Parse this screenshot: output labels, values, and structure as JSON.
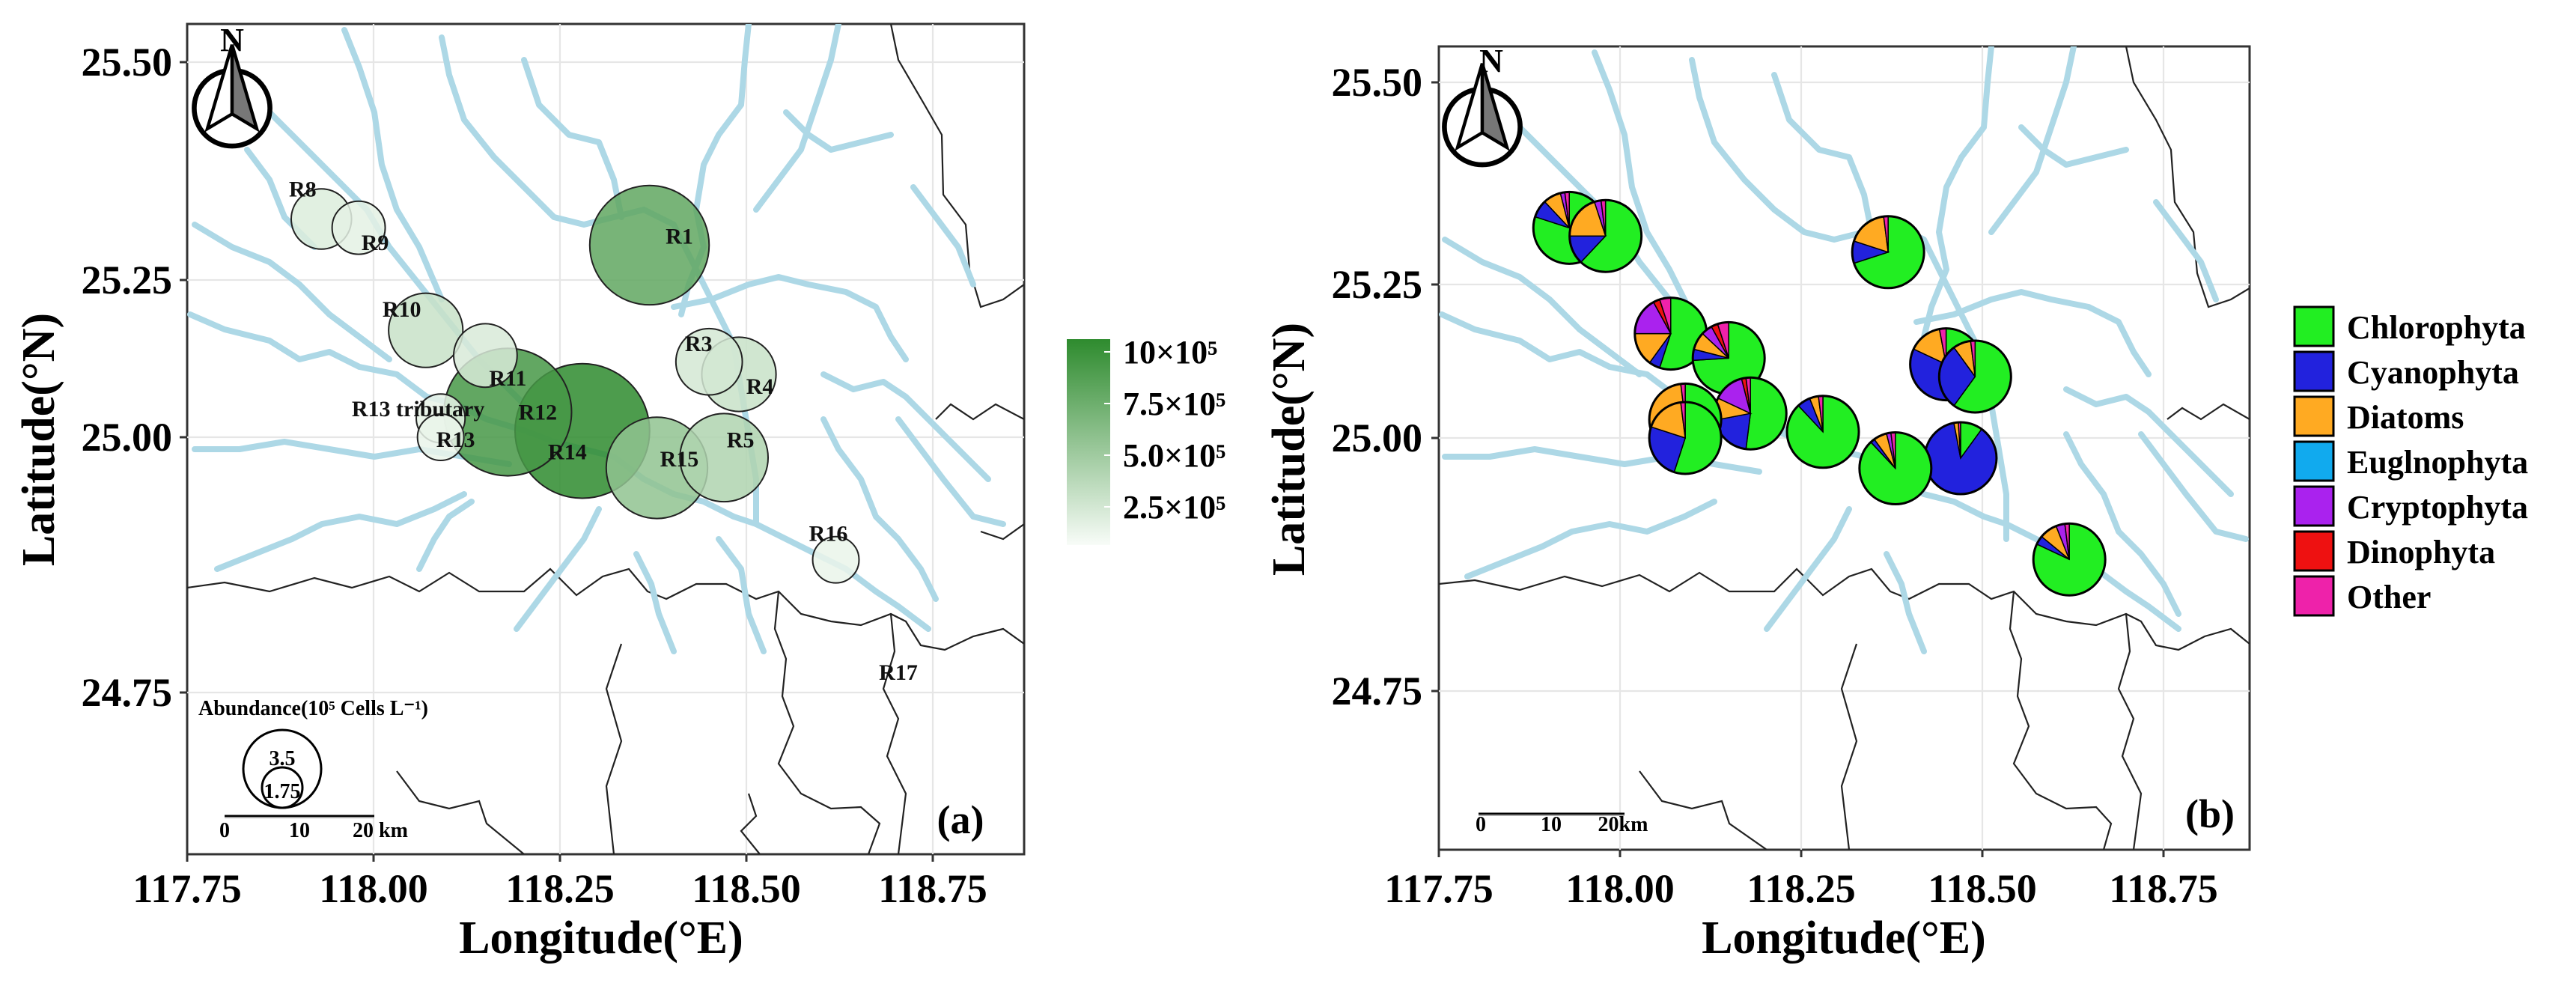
{
  "x_ticks": [
    "117.75",
    "118.00",
    "118.25",
    "118.50",
    "118.75"
  ],
  "y_ticks": [
    "25.50",
    "25.25",
    "25.00",
    "24.75"
  ],
  "xlabel": "Longitude(°E)",
  "ylabel": "Latitude(°N)",
  "north_label": "N",
  "panel_a": {
    "tag": "(a)",
    "colorbar_ticks": [
      "10×10⁵",
      "7.5×10⁵",
      "5.0×10⁵",
      "2.5×10⁵"
    ],
    "size_legend_title": "Abundance(10⁵ Cells L⁻¹)",
    "size_legend_values": [
      "3.5",
      "1.75"
    ],
    "scale_ticks": [
      "0",
      "10",
      "20 km"
    ]
  },
  "panel_b": {
    "tag": "(b)",
    "scale_ticks": [
      "0",
      "10",
      "20km"
    ]
  },
  "legend_items": [
    "Chlorophyta",
    "Cyanophyta",
    "Diatoms",
    "Euglnophyta",
    "Cryptophyta",
    "Dinophyta",
    "Other"
  ],
  "colors": {
    "Chlorophyta": "#22ee22",
    "Cyanophyta": "#2222dd",
    "Diatoms": "#ffaa22",
    "Euglnophyta": "#11aaee",
    "Cryptophyta": "#aa22ee",
    "Dinophyta": "#ee1111",
    "Other": "#ee22aa",
    "abundance_low": "#f4faf4",
    "abundance_high": "#2e8b2e",
    "river": "#add8e6"
  },
  "sites": [
    {
      "name": "R1",
      "lon": 118.37,
      "lat": 25.29,
      "abundance": 7.5,
      "comp": [
        0.7,
        0.1,
        0.18,
        0.0,
        0.0,
        0.0,
        0.02
      ]
    },
    {
      "name": "R3",
      "lon": 118.45,
      "lat": 25.12,
      "abundance": 1.6,
      "comp": [
        0.4,
        0.42,
        0.15,
        0.0,
        0.0,
        0.0,
        0.03
      ]
    },
    {
      "name": "R4",
      "lon": 118.49,
      "lat": 25.1,
      "abundance": 2.2,
      "comp": [
        0.6,
        0.3,
        0.08,
        0.0,
        0.0,
        0.0,
        0.02
      ]
    },
    {
      "name": "R5",
      "lon": 118.47,
      "lat": 24.98,
      "abundance": 3.5,
      "comp": [
        0.1,
        0.87,
        0.02,
        0.0,
        0.0,
        0.0,
        0.01
      ]
    },
    {
      "name": "R8",
      "lon": 117.93,
      "lat": 25.32,
      "abundance": 1.2,
      "comp": [
        0.8,
        0.08,
        0.08,
        0.0,
        0.02,
        0.0,
        0.02
      ]
    },
    {
      "name": "R9",
      "lon": 117.98,
      "lat": 25.31,
      "abundance": 0.8,
      "comp": [
        0.62,
        0.13,
        0.2,
        0.0,
        0.03,
        0.0,
        0.02
      ]
    },
    {
      "name": "R10",
      "lon": 118.07,
      "lat": 25.17,
      "abundance": 2.2,
      "comp": [
        0.55,
        0.05,
        0.15,
        0.0,
        0.17,
        0.03,
        0.05
      ]
    },
    {
      "name": "R11",
      "lon": 118.15,
      "lat": 25.13,
      "abundance": 1.4,
      "comp": [
        0.74,
        0.05,
        0.08,
        0.0,
        0.05,
        0.03,
        0.05
      ]
    },
    {
      "name": "R12",
      "lon": 118.18,
      "lat": 25.04,
      "abundance": 8.8,
      "comp": [
        0.52,
        0.2,
        0.1,
        0.0,
        0.14,
        0.02,
        0.02
      ]
    },
    {
      "name": "R13",
      "lon": 118.09,
      "lat": 25.03,
      "abundance": 0.6,
      "comp": [
        0.55,
        0.0,
        0.43,
        0.0,
        0.0,
        0.0,
        0.02
      ]
    },
    {
      "name": "R14",
      "lon": 118.28,
      "lat": 25.01,
      "abundance": 10.0,
      "comp": [
        0.88,
        0.06,
        0.04,
        0.0,
        0.0,
        0.0,
        0.02
      ]
    },
    {
      "name": "R15",
      "lon": 118.38,
      "lat": 24.97,
      "abundance": 5.0,
      "comp": [
        0.88,
        0.02,
        0.06,
        0.0,
        0.02,
        0.0,
        0.02
      ]
    },
    {
      "name": "R16",
      "lon": 118.62,
      "lat": 24.88,
      "abundance": 0.5,
      "comp": [
        0.82,
        0.04,
        0.08,
        0.0,
        0.04,
        0.0,
        0.02
      ]
    },
    {
      "name": "R17",
      "lon": null,
      "lat": null,
      "abundance": null,
      "comp": null
    },
    {
      "name": "R13 tributary",
      "lon": 118.09,
      "lat": 25.0,
      "abundance": 0.5,
      "comp": [
        0.55,
        0.25,
        0.18,
        0.0,
        0.0,
        0.0,
        0.02
      ]
    }
  ]
}
